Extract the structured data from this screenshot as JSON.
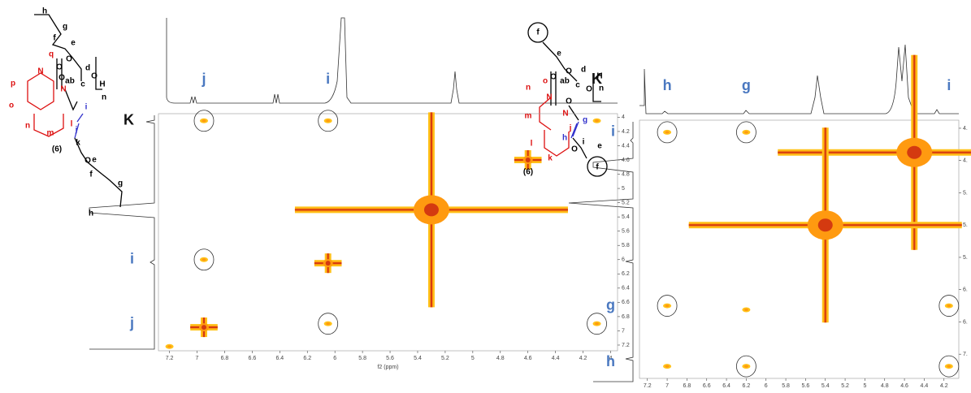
{
  "chart_data": [
    {
      "type": "nmr2d",
      "xlabel": "f2 (ppm)",
      "xlim": [
        7.28,
        3.95
      ],
      "ylim": [
        3.95,
        7.28
      ],
      "xticks": [
        7.2,
        7.0,
        6.8,
        6.6,
        6.4,
        6.2,
        6.0,
        5.8,
        5.6,
        5.4,
        5.2,
        5.0,
        4.8,
        4.6,
        4.4,
        4.2,
        4.0
      ],
      "yticks": [
        4.0,
        4.2,
        4.4,
        4.6,
        4.8,
        5.0,
        5.2,
        5.4,
        5.6,
        5.8,
        6.0,
        6.2,
        6.4,
        6.6,
        6.8,
        7.0,
        7.2
      ],
      "top_labels": {
        "text": [
          "j",
          "i",
          "K"
        ],
        "x": [
          6.95,
          6.05,
          4.1
        ]
      },
      "left_labels": {
        "text": [
          "K",
          "i",
          "j"
        ],
        "y": [
          4.05,
          6.0,
          6.9
        ]
      },
      "peaks": {
        "x": [
          4.1,
          4.6,
          5.3,
          6.95,
          6.05,
          6.95,
          6.05,
          6.95,
          6.05,
          4.1,
          7.2
        ],
        "y": [
          4.05,
          4.6,
          5.3,
          4.05,
          4.05,
          6.0,
          6.05,
          6.95,
          6.9,
          6.9,
          7.22
        ],
        "circled": [
          false,
          false,
          false,
          true,
          true,
          true,
          false,
          false,
          true,
          true,
          false
        ]
      }
    },
    {
      "type": "nmr2d",
      "xlim": [
        7.28,
        4.05
      ],
      "ylim": [
        4.1,
        7.3
      ],
      "xticks": [
        7.2,
        7.0,
        6.8,
        6.6,
        6.4,
        6.2,
        6.0,
        5.8,
        5.6,
        5.4,
        5.2,
        5.0,
        4.8,
        4.6,
        4.4,
        4.2
      ],
      "yticks": [
        {
          "value": 4.2,
          "label": "4."
        },
        {
          "value": 4.6,
          "label": "4."
        },
        {
          "value": 5.0,
          "label": "5."
        },
        {
          "value": 5.4,
          "label": "5."
        },
        {
          "value": 5.8,
          "label": "5."
        },
        {
          "value": 6.2,
          "label": "6."
        },
        {
          "value": 6.6,
          "label": "6."
        },
        {
          "value": 7.0,
          "label": "7."
        }
      ],
      "top_labels": {
        "text": [
          "h",
          "g",
          "i"
        ],
        "x": [
          7.0,
          6.2,
          4.15
        ]
      },
      "left_labels": {
        "text": [
          "i",
          "g",
          "h"
        ],
        "y": [
          4.25,
          6.4,
          7.1
        ]
      },
      "peaks": {
        "x": [
          4.5,
          5.4,
          7.0,
          6.2,
          7.0,
          6.2,
          4.15,
          7.0,
          6.2,
          4.15
        ],
        "y": [
          4.5,
          5.4,
          4.25,
          4.25,
          6.4,
          6.45,
          6.4,
          7.15,
          7.15,
          7.15
        ],
        "circled": [
          false,
          false,
          true,
          true,
          true,
          false,
          true,
          false,
          true,
          true
        ]
      }
    }
  ],
  "structures": [
    {
      "labels": [
        "h",
        "g",
        "f",
        "e",
        "O",
        "d",
        "ab",
        "c",
        "O",
        "H",
        "n",
        "O",
        "q",
        "p",
        "o",
        "N",
        "N",
        "n",
        "m",
        "l",
        "O",
        "i",
        "j",
        "k",
        "O",
        "e",
        "f",
        "g",
        "h",
        "(6)"
      ]
    },
    {
      "labels": [
        "f",
        "e",
        "O",
        "d",
        "ab",
        "c",
        "O",
        "H",
        "n",
        "O",
        "n",
        "o",
        "N",
        "N",
        "m",
        "l",
        "k",
        "j",
        "O",
        "g",
        "h",
        "i",
        "O",
        "e",
        "f",
        "(6)"
      ]
    }
  ]
}
